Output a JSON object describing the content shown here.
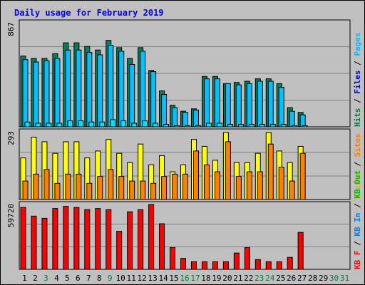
{
  "chart_data": {
    "type": "bar",
    "title": "Daily usage for February 2019",
    "title_color": "#0000ff",
    "background": "#c0c0c0",
    "plot_background": "#c0c0c0",
    "grid": true,
    "days": [
      "1",
      "2",
      "3",
      "4",
      "5",
      "6",
      "7",
      "8",
      "9",
      "10",
      "11",
      "12",
      "13",
      "14",
      "15",
      "16",
      "17",
      "18",
      "19",
      "20",
      "21",
      "22",
      "23",
      "24",
      "25",
      "26",
      "27",
      "28",
      "29",
      "30",
      "31"
    ],
    "day_colors": [
      "#000000",
      "#000000",
      "#008040",
      "#000000",
      "#000000",
      "#000000",
      "#000000",
      "#000000",
      "#008040",
      "#000000",
      "#000000",
      "#000000",
      "#000000",
      "#000000",
      "#000000",
      "#008040",
      "#008040",
      "#000000",
      "#000000",
      "#000000",
      "#000000",
      "#000000",
      "#008040",
      "#008040",
      "#000000",
      "#000000",
      "#000000",
      "#000000",
      "#000000",
      "#008040",
      "#008040"
    ],
    "panels": [
      {
        "max_label": "867",
        "ymax": 867,
        "legend": [
          {
            "text": "Hits",
            "color": "#008040"
          },
          {
            "text": " / ",
            "color": "#000000"
          },
          {
            "text": "Files",
            "color": "#0000ff"
          },
          {
            "text": " / ",
            "color": "#000000"
          },
          {
            "text": "Pages",
            "color": "#00c0ff"
          }
        ],
        "series": [
          {
            "name": "Hits",
            "color": "#008060",
            "values": [
              590,
              570,
              570,
              610,
              700,
              700,
              670,
              640,
              720,
              660,
              570,
              660,
              470,
              300,
              180,
              130,
              150,
              420,
              420,
              360,
              370,
              380,
              400,
              400,
              360,
              160,
              120,
              0,
              0,
              0,
              0
            ]
          },
          {
            "name": "Files",
            "color": "#00c0ff",
            "values": [
              560,
              540,
              550,
              570,
              640,
              640,
              620,
              600,
              680,
              630,
              520,
              630,
              460,
              270,
              160,
              120,
              140,
              400,
              400,
              360,
              350,
              360,
              380,
              380,
              330,
              130,
              100,
              0,
              0,
              0,
              0
            ]
          },
          {
            "name": "Pages",
            "color": "#00e0ff",
            "values": [
              40,
              30,
              30,
              30,
              50,
              50,
              40,
              40,
              60,
              50,
              30,
              50,
              30,
              20,
              10,
              10,
              10,
              30,
              30,
              20,
              20,
              20,
              20,
              20,
              20,
              10,
              10,
              0,
              0,
              0,
              0
            ]
          }
        ]
      },
      {
        "max_label": "293",
        "ymax": 293,
        "legend": [
          {
            "text": "Visits",
            "color": "#c0c000"
          },
          {
            "text": " / ",
            "color": "#000000"
          },
          {
            "text": "Sites",
            "color": "#ff8000"
          }
        ],
        "series": [
          {
            "name": "Visits",
            "color": "#ffff00",
            "values": [
              180,
              270,
              250,
              200,
              250,
              250,
              180,
              210,
              260,
              200,
              160,
              240,
              150,
              190,
              120,
              150,
              260,
              230,
              170,
              290,
              160,
              160,
              200,
              290,
              210,
              160,
              230,
              0,
              0,
              0,
              0
            ]
          },
          {
            "name": "Sites",
            "color": "#ff8000",
            "values": [
              80,
              110,
              130,
              70,
              110,
              110,
              70,
              100,
              130,
              100,
              80,
              80,
              70,
              100,
              110,
              110,
              210,
              150,
              120,
              250,
              100,
              120,
              120,
              240,
              140,
              80,
              200,
              0,
              0,
              0,
              0
            ]
          }
        ]
      },
      {
        "max_label": "59720",
        "ymax": 59720,
        "legend": [
          {
            "text": "KB F",
            "color": "#ff0000"
          },
          {
            "text": " / ",
            "color": "#000000"
          },
          {
            "text": "KB In",
            "color": "#0080ff"
          },
          {
            "text": " / ",
            "color": "#000000"
          },
          {
            "text": "KB Out",
            "color": "#00c000"
          }
        ],
        "series": [
          {
            "name": "KB F",
            "color": "#ff0000",
            "values": [
              57000,
              49000,
              47000,
              56000,
              58000,
              57000,
              55000,
              56000,
              55000,
              35000,
              53000,
              55000,
              59720,
              42000,
              20000,
              10000,
              7000,
              7000,
              7000,
              7000,
              15000,
              20000,
              9000,
              7000,
              7000,
              11000,
              34000,
              0,
              0,
              0,
              0
            ]
          }
        ]
      }
    ]
  }
}
